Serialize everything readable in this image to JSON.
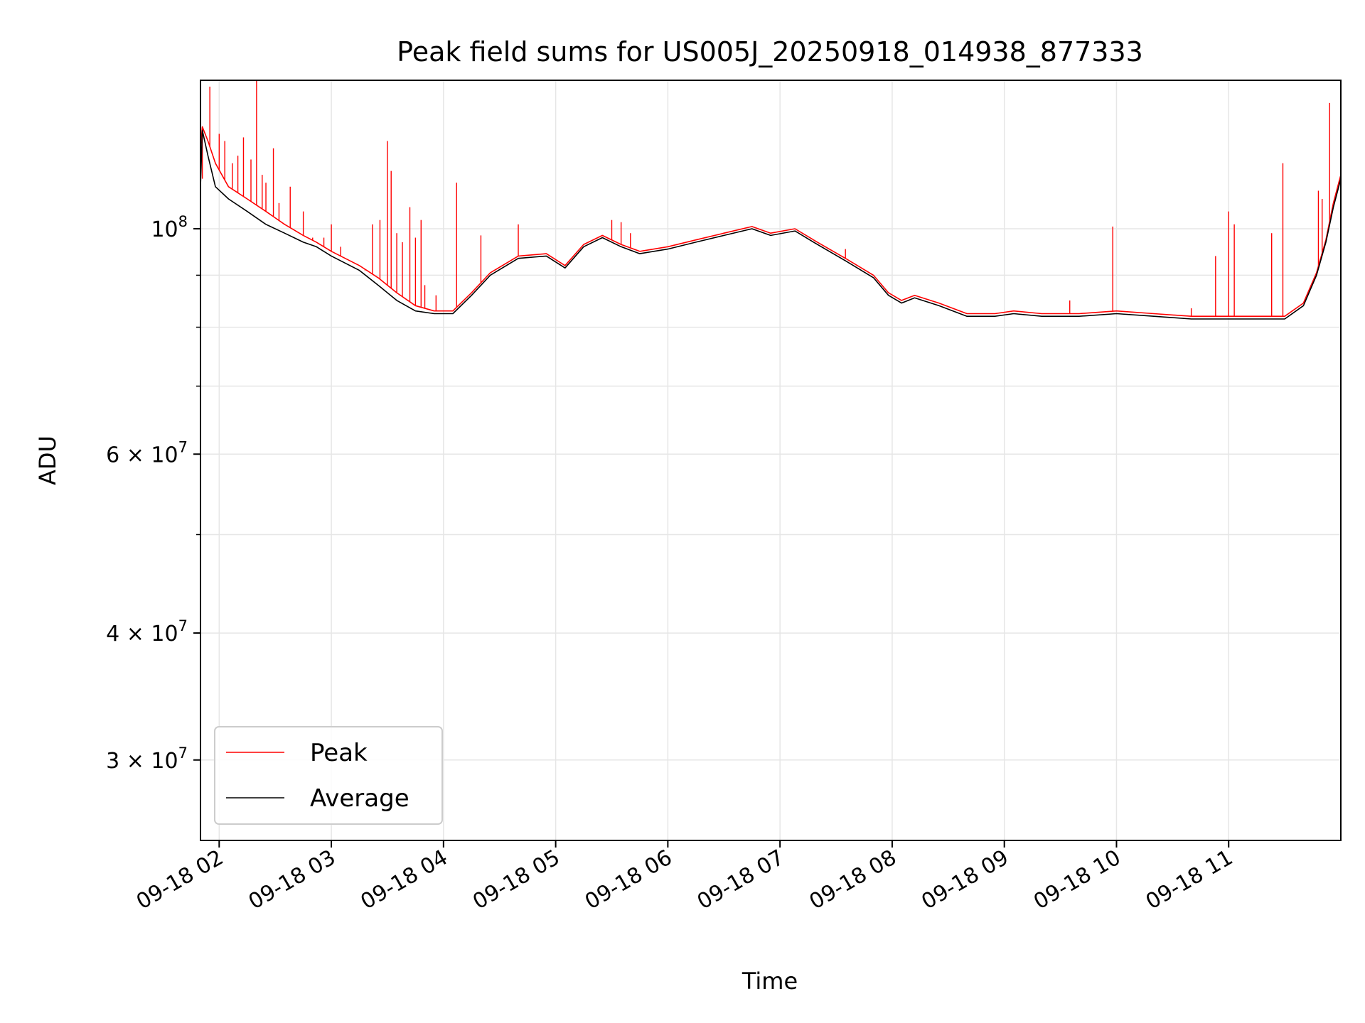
{
  "chart_data": {
    "type": "line",
    "title": "Peak field sums for US005J_20250918_014938_877333",
    "xlabel": "Time",
    "ylabel": "ADU",
    "y_scale": "log",
    "ylim": [
      25000000,
      140000000
    ],
    "xlim": [
      "09-18 01:50",
      "09-18 12:00"
    ],
    "grid": true,
    "legend_position": "lower-left",
    "x_ticks": [
      "09-18 02",
      "09-18 03",
      "09-18 04",
      "09-18 05",
      "09-18 06",
      "09-18 07",
      "09-18 08",
      "09-18 09",
      "09-18 10",
      "09-18 11"
    ],
    "y_ticks": [
      {
        "value": 30000000,
        "mantissa": "3",
        "exponent": "7"
      },
      {
        "value": 40000000,
        "mantissa": "4",
        "exponent": "7"
      },
      {
        "value": 60000000,
        "mantissa": "6",
        "exponent": "7"
      },
      {
        "value": 100000000,
        "mantissa": "",
        "exponent": "8"
      }
    ],
    "series": [
      {
        "name": "Average",
        "color": "#000000",
        "points": [
          [
            "09-18 01:50",
            110000000
          ],
          [
            "09-18 01:51",
            125000000
          ],
          [
            "09-18 01:54",
            118000000
          ],
          [
            "09-18 01:58",
            110000000
          ],
          [
            "09-18 02:05",
            107000000
          ],
          [
            "09-18 02:15",
            104000000
          ],
          [
            "09-18 02:25",
            101000000
          ],
          [
            "09-18 02:35",
            99000000
          ],
          [
            "09-18 02:45",
            97000000
          ],
          [
            "09-18 02:52",
            96000000
          ],
          [
            "09-18 03:00",
            94000000
          ],
          [
            "09-18 03:15",
            91000000
          ],
          [
            "09-18 03:25",
            88000000
          ],
          [
            "09-18 03:35",
            85000000
          ],
          [
            "09-18 03:45",
            83000000
          ],
          [
            "09-18 03:55",
            82500000
          ],
          [
            "09-18 04:05",
            82500000
          ],
          [
            "09-18 04:15",
            86000000
          ],
          [
            "09-18 04:25",
            90000000
          ],
          [
            "09-18 04:40",
            93500000
          ],
          [
            "09-18 04:55",
            94000000
          ],
          [
            "09-18 05:05",
            91500000
          ],
          [
            "09-18 05:15",
            96000000
          ],
          [
            "09-18 05:25",
            98000000
          ],
          [
            "09-18 05:35",
            96000000
          ],
          [
            "09-18 05:45",
            94500000
          ],
          [
            "09-18 06:00",
            95500000
          ],
          [
            "09-18 06:15",
            97000000
          ],
          [
            "09-18 06:30",
            98500000
          ],
          [
            "09-18 06:45",
            100000000
          ],
          [
            "09-18 06:55",
            98500000
          ],
          [
            "09-18 07:08",
            99500000
          ],
          [
            "09-18 07:20",
            96500000
          ],
          [
            "09-18 07:35",
            93000000
          ],
          [
            "09-18 07:50",
            89500000
          ],
          [
            "09-18 07:58",
            86000000
          ],
          [
            "09-18 08:05",
            84500000
          ],
          [
            "09-18 08:12",
            85500000
          ],
          [
            "09-18 08:25",
            84000000
          ],
          [
            "09-18 08:40",
            82000000
          ],
          [
            "09-18 08:55",
            82000000
          ],
          [
            "09-18 09:05",
            82500000
          ],
          [
            "09-18 09:20",
            82000000
          ],
          [
            "09-18 09:40",
            82000000
          ],
          [
            "09-18 10:00",
            82500000
          ],
          [
            "09-18 10:20",
            82000000
          ],
          [
            "09-18 10:40",
            81500000
          ],
          [
            "09-18 11:00",
            81500000
          ],
          [
            "09-18 11:20",
            81500000
          ],
          [
            "09-18 11:30",
            81500000
          ],
          [
            "09-18 11:40",
            84000000
          ],
          [
            "09-18 11:47",
            90000000
          ],
          [
            "09-18 11:52",
            97000000
          ],
          [
            "09-18 11:56",
            105000000
          ],
          [
            "09-18 12:00",
            112000000
          ]
        ]
      },
      {
        "name": "Peak",
        "color": "#ff0000",
        "points": [
          [
            "09-18 01:50",
            120000000
          ],
          [
            "09-18 01:51",
            126000000
          ],
          [
            "09-18 01:54",
            122000000
          ],
          [
            "09-18 01:58",
            116000000
          ],
          [
            "09-18 02:05",
            110000000
          ],
          [
            "09-18 02:15",
            107000000
          ],
          [
            "09-18 02:25",
            104000000
          ],
          [
            "09-18 02:35",
            101000000
          ],
          [
            "09-18 02:45",
            98500000
          ],
          [
            "09-18 02:52",
            97000000
          ],
          [
            "09-18 03:00",
            95000000
          ],
          [
            "09-18 03:15",
            92000000
          ],
          [
            "09-18 03:25",
            89500000
          ],
          [
            "09-18 03:35",
            86500000
          ],
          [
            "09-18 03:45",
            84000000
          ],
          [
            "09-18 03:55",
            83000000
          ],
          [
            "09-18 04:05",
            83000000
          ],
          [
            "09-18 04:15",
            86500000
          ],
          [
            "09-18 04:25",
            90500000
          ],
          [
            "09-18 04:40",
            94000000
          ],
          [
            "09-18 04:55",
            94500000
          ],
          [
            "09-18 05:05",
            92000000
          ],
          [
            "09-18 05:15",
            96500000
          ],
          [
            "09-18 05:25",
            98500000
          ],
          [
            "09-18 05:35",
            96500000
          ],
          [
            "09-18 05:45",
            95000000
          ],
          [
            "09-18 06:00",
            96000000
          ],
          [
            "09-18 06:15",
            97500000
          ],
          [
            "09-18 06:30",
            99000000
          ],
          [
            "09-18 06:45",
            100500000
          ],
          [
            "09-18 06:55",
            99000000
          ],
          [
            "09-18 07:08",
            100000000
          ],
          [
            "09-18 07:20",
            97000000
          ],
          [
            "09-18 07:35",
            93500000
          ],
          [
            "09-18 07:50",
            90000000
          ],
          [
            "09-18 07:58",
            86500000
          ],
          [
            "09-18 08:05",
            85000000
          ],
          [
            "09-18 08:12",
            86000000
          ],
          [
            "09-18 08:25",
            84500000
          ],
          [
            "09-18 08:40",
            82500000
          ],
          [
            "09-18 08:55",
            82500000
          ],
          [
            "09-18 09:05",
            83000000
          ],
          [
            "09-18 09:20",
            82500000
          ],
          [
            "09-18 09:40",
            82500000
          ],
          [
            "09-18 10:00",
            83000000
          ],
          [
            "09-18 10:20",
            82500000
          ],
          [
            "09-18 10:40",
            82000000
          ],
          [
            "09-18 11:00",
            82000000
          ],
          [
            "09-18 11:20",
            82000000
          ],
          [
            "09-18 11:30",
            82000000
          ],
          [
            "09-18 11:40",
            84500000
          ],
          [
            "09-18 11:47",
            90500000
          ],
          [
            "09-18 11:52",
            97500000
          ],
          [
            "09-18 11:56",
            106000000
          ],
          [
            "09-18 12:00",
            113000000
          ]
        ],
        "spikes": [
          [
            "09-18 01:51",
            112000000
          ],
          [
            "09-18 01:55",
            138000000
          ],
          [
            "09-18 02:00",
            124000000
          ],
          [
            "09-18 02:03",
            122000000
          ],
          [
            "09-18 02:07",
            116000000
          ],
          [
            "09-18 02:10",
            118000000
          ],
          [
            "09-18 02:13",
            123000000
          ],
          [
            "09-18 02:17",
            117000000
          ],
          [
            "09-18 02:20",
            142000000
          ],
          [
            "09-18 02:23",
            113000000
          ],
          [
            "09-18 02:25",
            111000000
          ],
          [
            "09-18 02:29",
            120000000
          ],
          [
            "09-18 02:32",
            106000000
          ],
          [
            "09-18 02:38",
            110000000
          ],
          [
            "09-18 02:45",
            104000000
          ],
          [
            "09-18 02:50",
            98000000
          ],
          [
            "09-18 02:56",
            98000000
          ],
          [
            "09-18 03:00",
            101000000
          ],
          [
            "09-18 03:05",
            96000000
          ],
          [
            "09-18 03:10",
            93000000
          ],
          [
            "09-18 03:18",
            91000000
          ],
          [
            "09-18 03:22",
            101000000
          ],
          [
            "09-18 03:26",
            102000000
          ],
          [
            "09-18 03:30",
            122000000
          ],
          [
            "09-18 03:32",
            114000000
          ],
          [
            "09-18 03:35",
            99000000
          ],
          [
            "09-18 03:38",
            97000000
          ],
          [
            "09-18 03:42",
            105000000
          ],
          [
            "09-18 03:45",
            98000000
          ],
          [
            "09-18 03:48",
            102000000
          ],
          [
            "09-18 03:50",
            88000000
          ],
          [
            "09-18 03:56",
            86000000
          ],
          [
            "09-18 04:07",
            111000000
          ],
          [
            "09-18 04:20",
            98500000
          ],
          [
            "09-18 04:40",
            101000000
          ],
          [
            "09-18 05:30",
            102000000
          ],
          [
            "09-18 05:35",
            101500000
          ],
          [
            "09-18 05:40",
            99000000
          ],
          [
            "09-18 07:35",
            95500000
          ],
          [
            "09-18 09:35",
            85000000
          ],
          [
            "09-18 09:58",
            100500000
          ],
          [
            "09-18 10:40",
            83500000
          ],
          [
            "09-18 10:53",
            94000000
          ],
          [
            "09-18 11:00",
            104000000
          ],
          [
            "09-18 11:03",
            101000000
          ],
          [
            "09-18 11:23",
            99000000
          ],
          [
            "09-18 11:29",
            116000000
          ],
          [
            "09-18 11:48",
            109000000
          ],
          [
            "09-18 11:50",
            107000000
          ],
          [
            "09-18 11:54",
            133000000
          ]
        ]
      }
    ]
  }
}
